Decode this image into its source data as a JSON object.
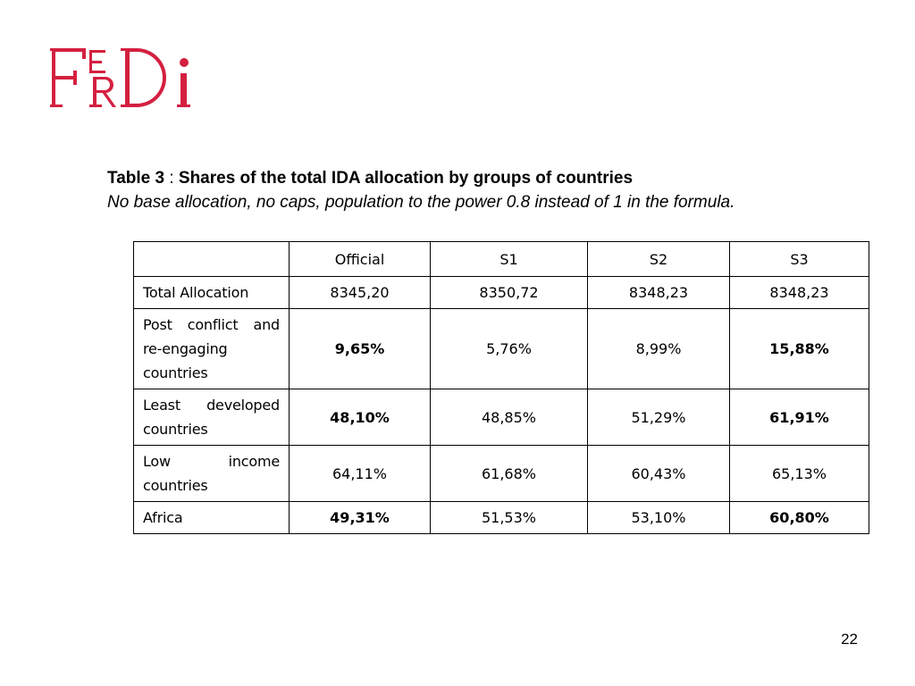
{
  "logo": {
    "text": "FERDI",
    "color": "#d42040"
  },
  "caption": {
    "table_label": "Table 3",
    "separator": " : ",
    "title": "Shares of the total IDA allocation by groups of countries",
    "subtitle": "No base allocation, no caps, population to the power 0.8 instead of 1 in the formula."
  },
  "table": {
    "headers": [
      "",
      "Official",
      "S1",
      "S2",
      "S3"
    ],
    "rows": [
      {
        "label": "Total Allocation",
        "values": [
          "8345,20",
          "8350,72",
          "8348,23",
          "8348,23"
        ],
        "bold": [
          false,
          false,
          false,
          false
        ]
      },
      {
        "label": "Post conflict and re-engaging countries",
        "values": [
          "9,65%",
          "5,76%",
          "8,99%",
          "15,88%"
        ],
        "bold": [
          true,
          false,
          false,
          true
        ]
      },
      {
        "label": "Least developed countries",
        "values": [
          "48,10%",
          "48,85%",
          "51,29%",
          "61,91%"
        ],
        "bold": [
          true,
          false,
          false,
          true
        ]
      },
      {
        "label": "Low income countries",
        "values": [
          "64,11%",
          "61,68%",
          "60,43%",
          "65,13%"
        ],
        "bold": [
          false,
          false,
          false,
          false
        ]
      },
      {
        "label": "Africa",
        "values": [
          "49,31%",
          "51,53%",
          "53,10%",
          "60,80%"
        ],
        "bold": [
          true,
          false,
          false,
          true
        ]
      }
    ]
  },
  "page_number": "22"
}
